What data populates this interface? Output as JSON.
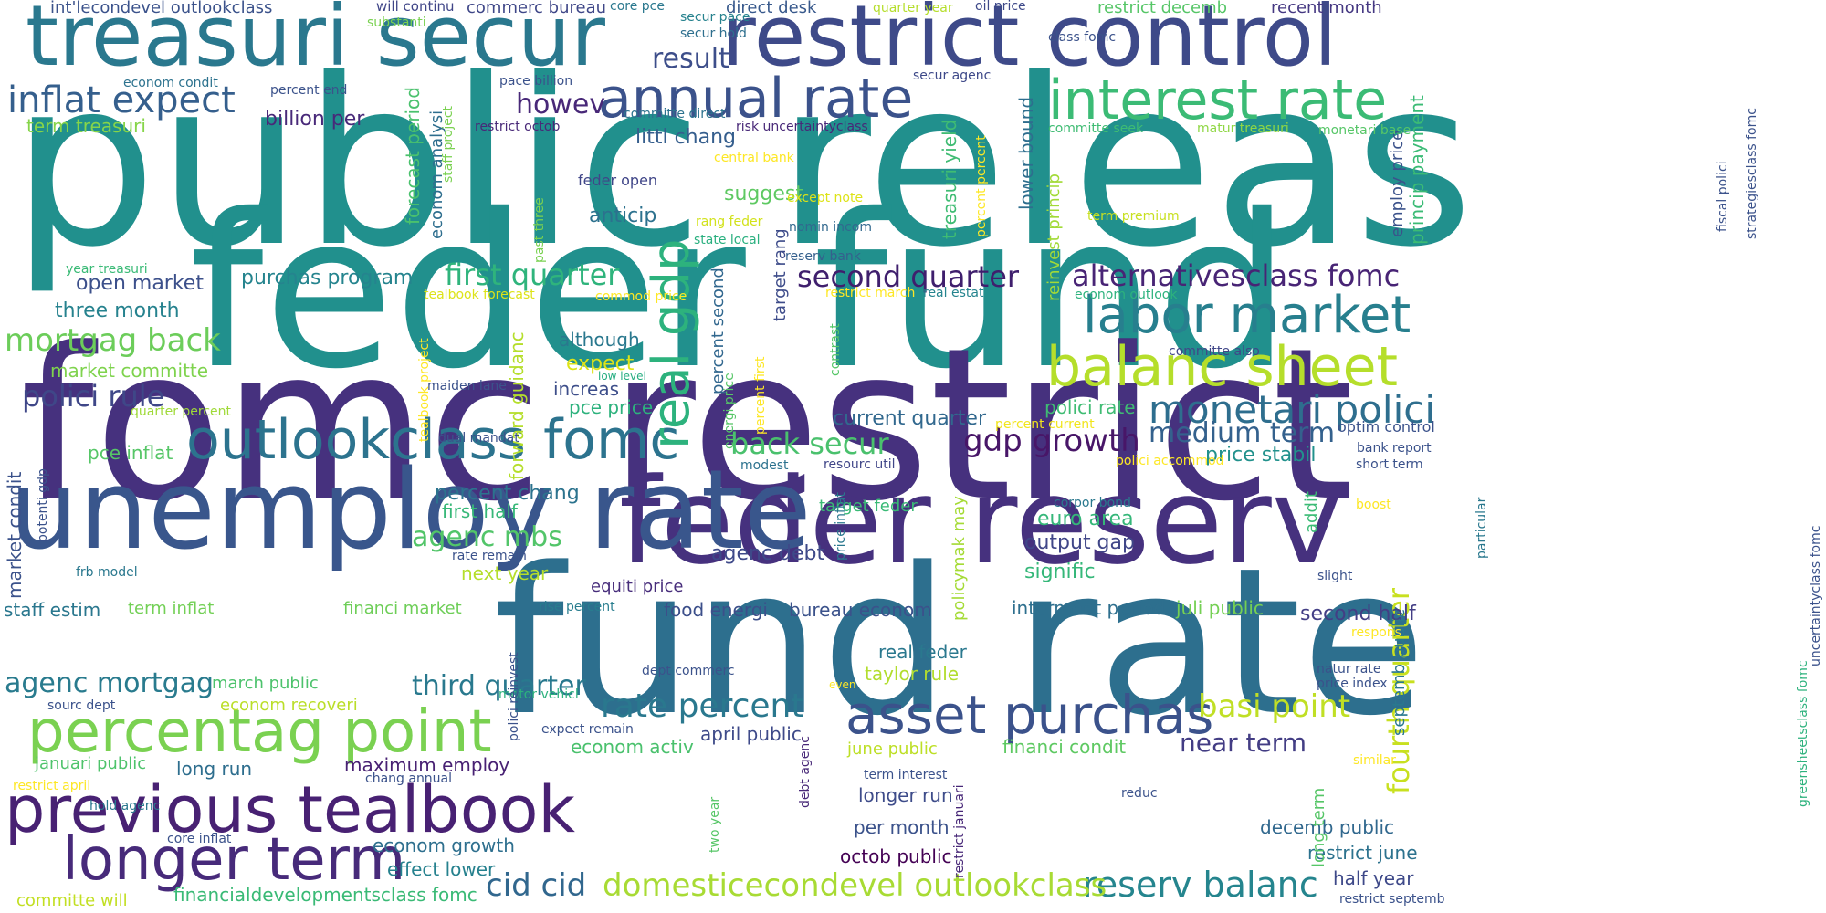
{
  "words": [
    {
      "text": "public releas",
      "color": "#21908d"
    },
    {
      "text": "feder fund",
      "color": "#21908d"
    },
    {
      "text": "fomc restrict",
      "color": "#46317e"
    },
    {
      "text": "fund rate",
      "color": "#2d6f8e"
    },
    {
      "text": "feder reserv",
      "color": "#46317e"
    },
    {
      "text": "unemploy rate",
      "color": "#39568c"
    },
    {
      "text": "treasuri secur",
      "color": "#2a788e"
    },
    {
      "text": "restrict control",
      "color": "#3e4a89"
    },
    {
      "text": "previous tealbook",
      "color": "#482173"
    },
    {
      "text": "percentag point",
      "color": "#7ad151"
    },
    {
      "text": "asset purchas",
      "color": "#3b528b"
    },
    {
      "text": "longer term",
      "color": "#472a7a"
    },
    {
      "text": "outlookclass fomc",
      "color": "#2c738e"
    },
    {
      "text": "interest rate",
      "color": "#3bbb75"
    },
    {
      "text": "annual rate",
      "color": "#3b528b"
    },
    {
      "text": "balanc sheet",
      "color": "#b5de2b"
    },
    {
      "text": "labor market",
      "color": "#277f8e"
    },
    {
      "text": "monetari polici",
      "color": "#2e6e8e"
    },
    {
      "text": "inflat expect",
      "color": "#355f8d"
    },
    {
      "text": "real gdp",
      "color": "#2db27d"
    },
    {
      "text": "mortgag back",
      "color": "#6ccd5a"
    },
    {
      "text": "polici rule",
      "color": "#3f4788"
    },
    {
      "text": "second quarter",
      "color": "#3f1f6d"
    },
    {
      "text": "alternativesclass fomc",
      "color": "#482475"
    },
    {
      "text": "first quarter",
      "color": "#2fb47c"
    },
    {
      "text": "gdp growth",
      "color": "#481668"
    },
    {
      "text": "back secur",
      "color": "#4ac16d"
    },
    {
      "text": "medium term",
      "color": "#34618d"
    },
    {
      "text": "agenc mbs",
      "color": "#52c569"
    },
    {
      "text": "rate percent",
      "color": "#2a788e"
    },
    {
      "text": "basi point",
      "color": "#c0df25"
    },
    {
      "text": "fourth quarter",
      "color": "#c8e020"
    },
    {
      "text": "reserv balanc",
      "color": "#25858e"
    },
    {
      "text": "domesticecondevel outlookclass",
      "color": "#a8db34"
    },
    {
      "text": "cid cid",
      "color": "#31678e"
    },
    {
      "text": "third quarter",
      "color": "#29798e"
    },
    {
      "text": "agenc mortgag",
      "color": "#297b8e"
    },
    {
      "text": "near term",
      "color": "#433d84"
    },
    {
      "text": "result",
      "color": "#3d4e8a"
    },
    {
      "text": "howev",
      "color": "#482878"
    },
    {
      "text": "littl chang",
      "color": "#355e8d"
    },
    {
      "text": "suggest",
      "color": "#5ec962"
    },
    {
      "text": "anticip",
      "color": "#2c718e"
    },
    {
      "text": "purchas program",
      "color": "#25848e"
    },
    {
      "text": "open market",
      "color": "#3c508b"
    },
    {
      "text": "three month",
      "color": "#26828e"
    },
    {
      "text": "term treasuri",
      "color": "#86d549"
    },
    {
      "text": "market committe",
      "color": "#7fd34e"
    },
    {
      "text": "billion per",
      "color": "#482979"
    },
    {
      "text": "current quarter",
      "color": "#31688e"
    },
    {
      "text": "polici rate",
      "color": "#3fbc73"
    },
    {
      "text": "price stabil",
      "color": "#21918c"
    },
    {
      "text": "target feder",
      "color": "#3aba76"
    },
    {
      "text": "euro area",
      "color": "#35b779"
    },
    {
      "text": "output gap",
      "color": "#404688"
    },
    {
      "text": "signific",
      "color": "#35b779"
    },
    {
      "text": "agenc debt",
      "color": "#3e4989"
    },
    {
      "text": "pce price",
      "color": "#2db27d"
    },
    {
      "text": "percent chang",
      "color": "#2c738e"
    },
    {
      "text": "first half",
      "color": "#37b878"
    },
    {
      "text": "next year",
      "color": "#b5de2b"
    },
    {
      "text": "equiti price",
      "color": "#472d7b"
    },
    {
      "text": "food energi",
      "color": "#3c4f8a"
    },
    {
      "text": "bureau econom",
      "color": "#3b528b"
    },
    {
      "text": "intermeet period",
      "color": "#2e6f8e"
    },
    {
      "text": "juli public",
      "color": "#75d054"
    },
    {
      "text": "second half",
      "color": "#433e85"
    },
    {
      "text": "staff estim",
      "color": "#2a778e"
    },
    {
      "text": "term inflat",
      "color": "#73d056"
    },
    {
      "text": "financi market",
      "color": "#6ece58"
    },
    {
      "text": "rise percent",
      "color": "#287d8e"
    },
    {
      "text": "real feder",
      "color": "#2a788e"
    },
    {
      "text": "taylor rule",
      "color": "#b2dd2d"
    },
    {
      "text": "march public",
      "color": "#4cc26c"
    },
    {
      "text": "econom recoveri",
      "color": "#bade28"
    },
    {
      "text": "januari public",
      "color": "#4ec36b"
    },
    {
      "text": "long run",
      "color": "#2e6e8e"
    },
    {
      "text": "maximum employ",
      "color": "#482173"
    },
    {
      "text": "april public",
      "color": "#3e4a89"
    },
    {
      "text": "econom activ",
      "color": "#4ac16d"
    },
    {
      "text": "june public",
      "color": "#bddf26"
    },
    {
      "text": "financi condit",
      "color": "#5ec962"
    },
    {
      "text": "longer run",
      "color": "#3e4c8a"
    },
    {
      "text": "per month",
      "color": "#3b528b"
    },
    {
      "text": "octob public",
      "color": "#440154"
    },
    {
      "text": "decemb public",
      "color": "#31688e"
    },
    {
      "text": "restrict june",
      "color": "#2c728e"
    },
    {
      "text": "half year",
      "color": "#3e4989"
    },
    {
      "text": "econom growth",
      "color": "#2e6f8e"
    },
    {
      "text": "effect lower",
      "color": "#26818e"
    },
    {
      "text": "financialdevelopmentsclass fomc",
      "color": "#3aba76"
    },
    {
      "text": "committe will",
      "color": "#c2df23"
    },
    {
      "text": "pce inflat",
      "color": "#56c667"
    },
    {
      "text": "market condit",
      "color": "#3b528b"
    },
    {
      "text": "forecast period",
      "color": "#4ac16d"
    },
    {
      "text": "forward guidanc",
      "color": "#b5de2b"
    },
    {
      "text": "treasuri yield",
      "color": "#3fbc73"
    },
    {
      "text": "lower bound",
      "color": "#2e6e8e"
    },
    {
      "text": "septemb public",
      "color": "#2a788e"
    },
    {
      "text": "target rang",
      "color": "#3e4c8a"
    },
    {
      "text": "percent second",
      "color": "#31678e"
    },
    {
      "text": "econom analysi",
      "color": "#2e6e8e"
    },
    {
      "text": "although",
      "color": "#2a788e"
    },
    {
      "text": "expect",
      "color": "#dde318"
    },
    {
      "text": "increas",
      "color": "#3d4e8a"
    },
    {
      "text": "policymak may",
      "color": "#a5db36"
    },
    {
      "text": "reinvest princip",
      "color": "#a2da37"
    },
    {
      "text": "employ price",
      "color": "#3b528b"
    },
    {
      "text": "princip payment",
      "color": "#3bbb75"
    },
    {
      "text": "recent month",
      "color": "#453882"
    },
    {
      "text": "restrict decemb",
      "color": "#56c667"
    },
    {
      "text": "direct desk",
      "color": "#38598c"
    },
    {
      "text": "commerc bureau",
      "color": "#3f4788"
    },
    {
      "text": "int'lecondevel outlookclass",
      "color": "#3b528b"
    },
    {
      "text": "will continu",
      "color": "#404688"
    },
    {
      "text": "core pce",
      "color": "#2a788e"
    },
    {
      "text": "secur pace",
      "color": "#26828e"
    },
    {
      "text": "secur hold",
      "color": "#2e6f8e"
    },
    {
      "text": "quarter year",
      "color": "#b5de2b"
    },
    {
      "text": "oil price",
      "color": "#3e4989"
    },
    {
      "text": "class fomc",
      "color": "#3b528b"
    },
    {
      "text": "econom condit",
      "color": "#2c728e"
    },
    {
      "text": "pace billion",
      "color": "#3b528b"
    },
    {
      "text": "percent end",
      "color": "#3b528b"
    },
    {
      "text": "restrict octob",
      "color": "#482878"
    },
    {
      "text": "committe direct",
      "color": "#2c728e"
    },
    {
      "text": "risk uncertaintyclass",
      "color": "#482878"
    },
    {
      "text": "secur agenc",
      "color": "#3e4989"
    },
    {
      "text": "committe seek",
      "color": "#3fbc73"
    },
    {
      "text": "matur treasuri",
      "color": "#8fd744"
    },
    {
      "text": "monetari base",
      "color": "#56c667"
    },
    {
      "text": "substanti",
      "color": "#7ad151"
    },
    {
      "text": "central bank",
      "color": "#fde725"
    },
    {
      "text": "feder open",
      "color": "#404688"
    },
    {
      "text": "except note",
      "color": "#dde318"
    },
    {
      "text": "nomin incom",
      "color": "#31688e"
    },
    {
      "text": "state local",
      "color": "#2ab07f"
    },
    {
      "text": "rang feder",
      "color": "#d2e21b"
    },
    {
      "text": "reserv bank",
      "color": "#35608d"
    },
    {
      "text": "term premium",
      "color": "#c8e020"
    },
    {
      "text": "year treasuri",
      "color": "#3aba76"
    },
    {
      "text": "tealbook forecast",
      "color": "#dde318"
    },
    {
      "text": "commod price",
      "color": "#fde725"
    },
    {
      "text": "econom outlook",
      "color": "#2db27d"
    },
    {
      "text": "restrict march",
      "color": "#fde725"
    },
    {
      "text": "real estat",
      "color": "#25848e"
    },
    {
      "text": "committe also",
      "color": "#404688"
    },
    {
      "text": "low level",
      "color": "#26ad81"
    },
    {
      "text": "maiden lane",
      "color": "#3b528b"
    },
    {
      "text": "quarter percent",
      "color": "#a0da39"
    },
    {
      "text": "dual mandat",
      "color": "#3b528b"
    },
    {
      "text": "resourc util",
      "color": "#404688"
    },
    {
      "text": "modest",
      "color": "#2c728e"
    },
    {
      "text": "percent current",
      "color": "#f1e51d"
    },
    {
      "text": "polici accommod",
      "color": "#fde725"
    },
    {
      "text": "optim control",
      "color": "#3b528b"
    },
    {
      "text": "bank report",
      "color": "#3b528b"
    },
    {
      "text": "short term",
      "color": "#3b528b"
    },
    {
      "text": "corpor bond",
      "color": "#2a788e"
    },
    {
      "text": "boost",
      "color": "#fde725"
    },
    {
      "text": "slight",
      "color": "#3b528b"
    },
    {
      "text": "respons",
      "color": "#fde725"
    },
    {
      "text": "frb model",
      "color": "#2a788e"
    },
    {
      "text": "rate remain",
      "color": "#3b528b"
    },
    {
      "text": "natur rate",
      "color": "#3b528b"
    },
    {
      "text": "price index",
      "color": "#3b528b"
    },
    {
      "text": "sourc dept",
      "color": "#3b528b"
    },
    {
      "text": "motor vehicl",
      "color": "#2db27d"
    },
    {
      "text": "dept commerc",
      "color": "#3b528b"
    },
    {
      "text": "even",
      "color": "#fde725"
    },
    {
      "text": "expect remain",
      "color": "#3b528b"
    },
    {
      "text": "term interest",
      "color": "#3b528b"
    },
    {
      "text": "chang annual",
      "color": "#3b528b"
    },
    {
      "text": "restrict april",
      "color": "#fde725"
    },
    {
      "text": "similar",
      "color": "#fde725"
    },
    {
      "text": "reduc",
      "color": "#3b528b"
    },
    {
      "text": "hold agenc",
      "color": "#2a788e"
    },
    {
      "text": "core inflat",
      "color": "#3b528b"
    },
    {
      "text": "restrict septemb",
      "color": "#3b528b"
    },
    {
      "text": "potenti gdp",
      "color": "#3b528b"
    },
    {
      "text": "staff project",
      "color": "#7ad151"
    },
    {
      "text": "past three",
      "color": "#7ad151"
    },
    {
      "text": "tealbook project",
      "color": "#fde725"
    },
    {
      "text": "energi price",
      "color": "#56c667"
    },
    {
      "text": "percent first",
      "color": "#fde725"
    },
    {
      "text": "contrast",
      "color": "#56c667"
    },
    {
      "text": "price inflat",
      "color": "#2a788e"
    },
    {
      "text": "addit",
      "color": "#3bbb75"
    },
    {
      "text": "particular",
      "color": "#2a788e"
    },
    {
      "text": "percent percent",
      "color": "#fde725"
    },
    {
      "text": "strategiesclass fomc",
      "color": "#3b528b"
    },
    {
      "text": "fiscal polici",
      "color": "#3b528b"
    },
    {
      "text": "uncertaintyclass fomc",
      "color": "#3b528b"
    },
    {
      "text": "greensheetsclass fomc",
      "color": "#2db27d"
    },
    {
      "text": "polici reinvest",
      "color": "#3b528b"
    },
    {
      "text": "debt agenc",
      "color": "#482878"
    },
    {
      "text": "restrict januari",
      "color": "#482878"
    },
    {
      "text": "two year",
      "color": "#56c667"
    },
    {
      "text": "long term",
      "color": "#56c667"
    }
  ]
}
